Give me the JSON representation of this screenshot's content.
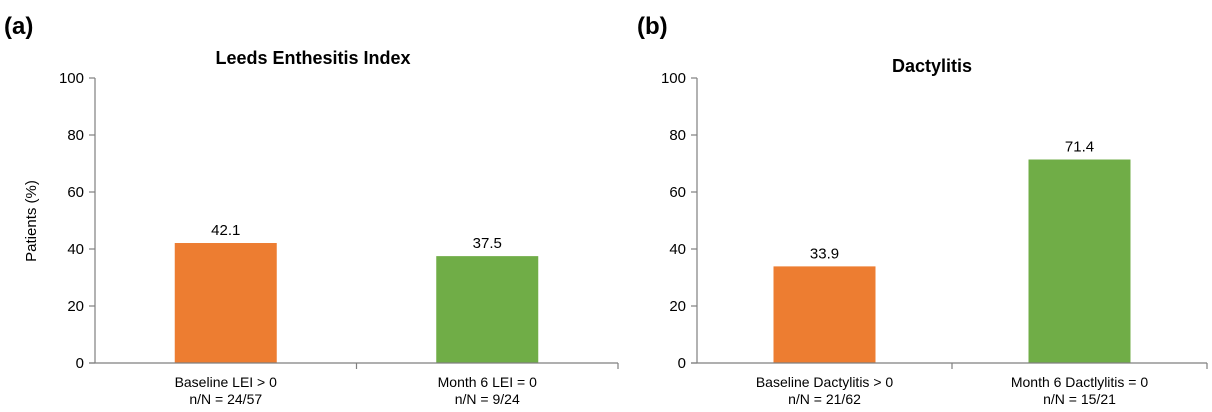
{
  "colors": {
    "orange": "#ED7D31",
    "green": "#70AD47",
    "axis": "#7f7f7f"
  },
  "chart_data": [
    {
      "type": "bar",
      "panel": "(a)",
      "title": "Leeds Enthesitis Index",
      "ylabel": "Patients (%)",
      "xlabel": "",
      "ylim": [
        0,
        100
      ],
      "yticks": [
        0,
        20,
        40,
        60,
        80,
        100
      ],
      "grid": false,
      "categories": [
        {
          "line1": "Baseline LEI > 0",
          "line2": "n/N = 24/57"
        },
        {
          "line1": "Month 6 LEI = 0",
          "line2": "n/N = 9/24"
        }
      ],
      "values": [
        42.1,
        37.5
      ],
      "value_labels": [
        "42.1",
        "37.5"
      ],
      "bar_colors": [
        "#ED7D31",
        "#70AD47"
      ]
    },
    {
      "type": "bar",
      "panel": "(b)",
      "title": "Dactylitis",
      "ylabel": "",
      "xlabel": "",
      "ylim": [
        0,
        100
      ],
      "yticks": [
        0,
        20,
        40,
        60,
        80,
        100
      ],
      "grid": false,
      "categories": [
        {
          "line1": "Baseline Dactylitis > 0",
          "line2": "n/N = 21/62"
        },
        {
          "line1": "Month 6 Dactlylitis = 0",
          "line2": "n/N = 15/21"
        }
      ],
      "values": [
        33.9,
        71.4
      ],
      "value_labels": [
        "33.9",
        "71.4"
      ],
      "bar_colors": [
        "#ED7D31",
        "#70AD47"
      ]
    }
  ]
}
